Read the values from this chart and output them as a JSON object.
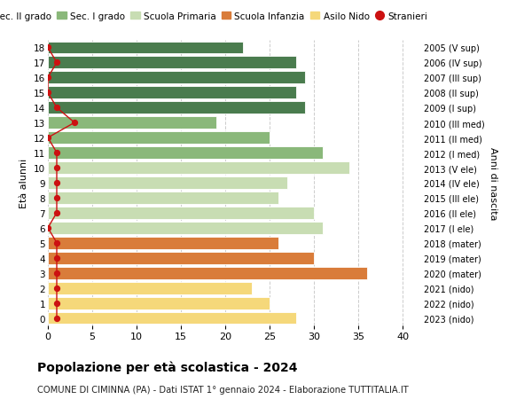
{
  "ages": [
    18,
    17,
    16,
    15,
    14,
    13,
    12,
    11,
    10,
    9,
    8,
    7,
    6,
    5,
    4,
    3,
    2,
    1,
    0
  ],
  "years": [
    "2005 (V sup)",
    "2006 (IV sup)",
    "2007 (III sup)",
    "2008 (II sup)",
    "2009 (I sup)",
    "2010 (III med)",
    "2011 (II med)",
    "2012 (I med)",
    "2013 (V ele)",
    "2014 (IV ele)",
    "2015 (III ele)",
    "2016 (II ele)",
    "2017 (I ele)",
    "2018 (mater)",
    "2019 (mater)",
    "2020 (mater)",
    "2021 (nido)",
    "2022 (nido)",
    "2023 (nido)"
  ],
  "values": [
    22,
    28,
    29,
    28,
    29,
    19,
    25,
    31,
    34,
    27,
    26,
    30,
    31,
    26,
    30,
    36,
    23,
    25,
    28
  ],
  "stranieri": [
    0,
    1,
    0,
    0,
    1,
    3,
    0,
    1,
    1,
    1,
    1,
    1,
    0,
    1,
    1,
    1,
    1,
    1,
    1
  ],
  "categories": {
    "sec2": [
      18,
      17,
      16,
      15,
      14
    ],
    "sec1": [
      13,
      12,
      11
    ],
    "primaria": [
      10,
      9,
      8,
      7,
      6
    ],
    "infanzia": [
      5,
      4,
      3
    ],
    "nido": [
      2,
      1,
      0
    ]
  },
  "colors": {
    "sec2": "#4a7c4e",
    "sec1": "#8ab87a",
    "primaria": "#c8ddb3",
    "infanzia": "#d97c3a",
    "nido": "#f5d87a"
  },
  "stranieri_color": "#cc1111",
  "bg_color": "#ffffff",
  "grid_color": "#cccccc",
  "title": "Popolazione per età scolastica - 2024",
  "subtitle": "COMUNE DI CIMINNA (PA) - Dati ISTAT 1° gennaio 2024 - Elaborazione TUTTITALIA.IT",
  "ylabel_left": "Età alunni",
  "ylabel_right": "Anni di nascita",
  "xlim": [
    0,
    42
  ],
  "ylim": [
    -0.5,
    18.5
  ],
  "xticks": [
    0,
    5,
    10,
    15,
    20,
    25,
    30,
    35,
    40
  ],
  "legend_labels": [
    "Sec. II grado",
    "Sec. I grado",
    "Scuola Primaria",
    "Scuola Infanzia",
    "Asilo Nido",
    "Stranieri"
  ]
}
